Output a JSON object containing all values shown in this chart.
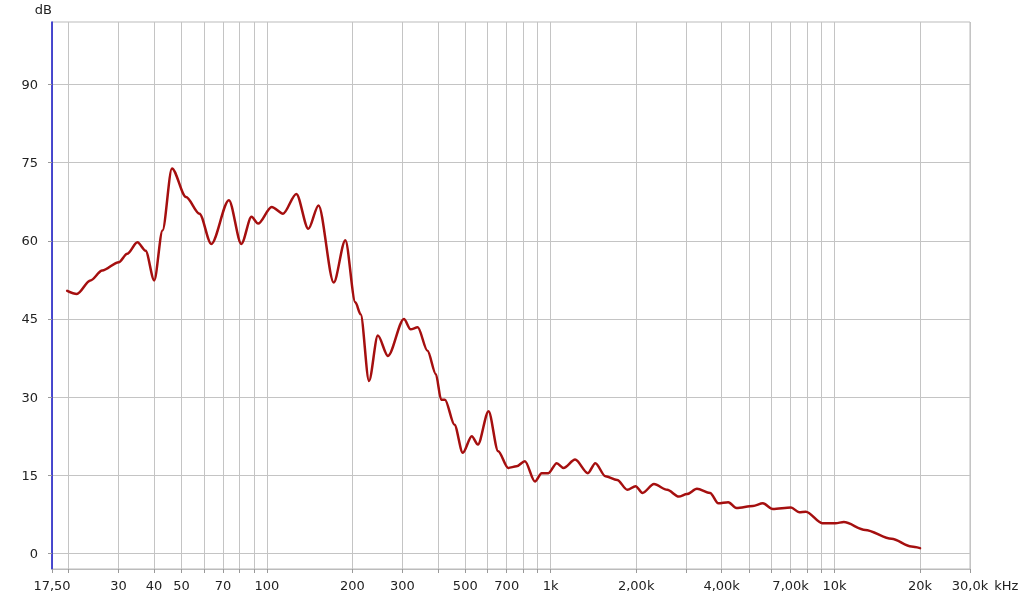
{
  "chart_data": {
    "type": "line",
    "ylabel": "dB",
    "x": [
      19.8,
      21.4,
      23.9,
      26.3,
      30.1,
      32.2,
      35.0,
      37.4,
      40.1,
      42.9,
      46.3,
      51.9,
      57.9,
      63.7,
      73.5,
      81.3,
      88.3,
      93.1,
      104,
      114,
      127,
      140,
      152,
      172,
      189,
      205,
      214,
      229,
      246,
      267,
      304,
      321,
      340,
      368,
      394,
      411,
      424,
      458,
      490,
      527,
      554,
      604,
      653,
      708,
      758,
      811,
      880,
      929,
      981,
      1050,
      1109,
      1219,
      1352,
      1436,
      1559,
      1714,
      1862,
      1991,
      2105,
      2311,
      2573,
      2825,
      3021,
      3275,
      3643,
      3895,
      4221,
      4515,
      5159,
      5592,
      6058,
      7023,
      7507,
      7923,
      9051,
      10080,
      10780,
      12830,
      15880,
      18650,
      20000
    ],
    "series": [
      {
        "color": "#a50f0f",
        "values": [
          50.4,
          49.8,
          52.4,
          54.3,
          55.9,
          57.5,
          59.7,
          58.1,
          52.4,
          62.0,
          73.9,
          68.4,
          65.2,
          59.4,
          67.8,
          59.4,
          64.6,
          63.3,
          66.5,
          65.2,
          69.0,
          62.3,
          66.8,
          52.0,
          60.1,
          48.2,
          45.9,
          33.1,
          41.8,
          37.9,
          45.0,
          43.0,
          43.4,
          38.9,
          34.4,
          29.5,
          29.5,
          24.7,
          19.3,
          22.5,
          20.9,
          27.3,
          19.6,
          16.4,
          16.7,
          17.7,
          13.8,
          15.4,
          15.4,
          17.3,
          16.4,
          18.0,
          15.4,
          17.3,
          14.8,
          14.1,
          12.2,
          12.9,
          11.6,
          13.3,
          12.2,
          10.9,
          11.4,
          12.4,
          11.6,
          9.6,
          9.8,
          8.7,
          9.1,
          9.6,
          8.5,
          8.8,
          7.9,
          8.0,
          5.8,
          5.8,
          6.0,
          4.5,
          2.8,
          1.3,
          1.0
        ]
      }
    ],
    "xlim": [
      17.5,
      30000
    ],
    "ylim": [
      -3,
      102
    ],
    "xticks": [
      {
        "value": 17.5,
        "label": "17,50"
      },
      {
        "value": 20,
        "label": null
      },
      30,
      40,
      50,
      {
        "value": 60,
        "label": null
      },
      70,
      {
        "value": 80,
        "label": null
      },
      {
        "value": 90,
        "label": null
      },
      100,
      200,
      300,
      {
        "value": 400,
        "label": null
      },
      500,
      {
        "value": 600,
        "label": null
      },
      700,
      {
        "value": 800,
        "label": null
      },
      {
        "value": 900,
        "label": null
      },
      {
        "value": 1000,
        "label": "1k"
      },
      {
        "value": 2000,
        "label": "2,00k"
      },
      {
        "value": 3000,
        "label": null
      },
      {
        "value": 4000,
        "label": "4,00k"
      },
      {
        "value": 5000,
        "label": null
      },
      {
        "value": 6000,
        "label": null
      },
      {
        "value": 7000,
        "label": "7,00k"
      },
      {
        "value": 8000,
        "label": null
      },
      {
        "value": 9000,
        "label": null
      },
      {
        "value": 10000,
        "label": "10k"
      },
      {
        "value": 20000,
        "label": "20k"
      },
      {
        "value": 30000,
        "label": "30,0k"
      }
    ],
    "xlabel": "kHz",
    "yticks": [
      0,
      15,
      30,
      45,
      60,
      75,
      90
    ],
    "log": "x",
    "grid": true,
    "marker": "none",
    "line_style": "solid"
  }
}
